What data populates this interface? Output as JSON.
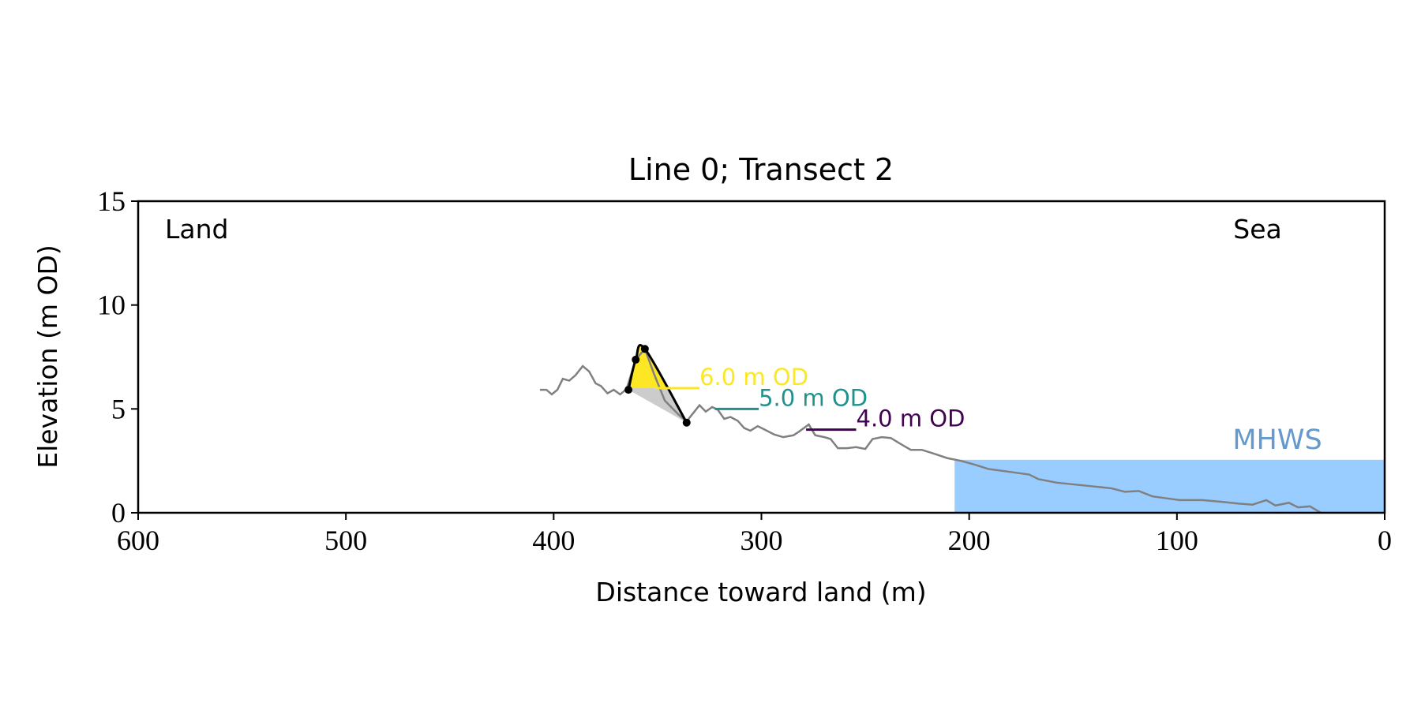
{
  "chart_data": {
    "type": "profile",
    "title": "Line 0; Transect 2",
    "xlabel": "Distance toward land (m)",
    "ylabel": "Elevation (m OD)",
    "annotations": {
      "left": "Land",
      "right": "Sea"
    },
    "xlim": [
      600,
      0
    ],
    "xticks": [
      600,
      500,
      400,
      300,
      200,
      100,
      0
    ],
    "ylim": [
      0,
      15
    ],
    "yticks": [
      0,
      5,
      10,
      15
    ],
    "profile": {
      "color": "#808080",
      "x": [
        406.6,
        403.5,
        400.9,
        398.2,
        395.6,
        392.5,
        389.5,
        386.0,
        382.9,
        379.8,
        377.2,
        374.1,
        371.1,
        368.0,
        364.9,
        360.5,
        356.1,
        351.8,
        346.5,
        340.0,
        336.0,
        333.3,
        329.8,
        326.8,
        323.7,
        321.0,
        317.9,
        314.9,
        311.4,
        308.3,
        305.3,
        301.8,
        298.2,
        293.9,
        289.5,
        284.6,
        282.0,
        277.2,
        274.1,
        269.7,
        266.7,
        263.2,
        258.8,
        254.4,
        250.0,
        246.5,
        242.1,
        237.7,
        233.3,
        228.1,
        222.8,
        217.1,
        210.5,
        203.9,
        197.4,
        190.8,
        184.2,
        177.6,
        171.1,
        166.7,
        157.9,
        149.1,
        140.4,
        131.6,
        125.0,
        118.4,
        111.8,
        105.3,
        98.7,
        87.7,
        78.9,
        70.2,
        63.6,
        57.0,
        52.6,
        46.1,
        41.7,
        36.0,
        30.7
      ],
      "y": [
        5.92,
        5.92,
        5.7,
        5.92,
        6.45,
        6.36,
        6.62,
        7.06,
        6.8,
        6.23,
        6.1,
        5.75,
        5.92,
        5.7,
        5.96,
        7.37,
        7.89,
        6.71,
        5.4,
        4.74,
        4.4,
        4.74,
        5.18,
        4.87,
        5.09,
        4.96,
        4.52,
        4.61,
        4.43,
        4.08,
        3.95,
        4.17,
        3.99,
        3.77,
        3.64,
        3.73,
        3.9,
        4.25,
        3.73,
        3.64,
        3.55,
        3.11,
        3.11,
        3.16,
        3.07,
        3.55,
        3.64,
        3.6,
        3.33,
        3.03,
        3.03,
        2.85,
        2.63,
        2.5,
        2.32,
        2.11,
        2.02,
        1.93,
        1.84,
        1.62,
        1.45,
        1.36,
        1.27,
        1.18,
        1.01,
        1.05,
        0.79,
        0.7,
        0.61,
        0.61,
        0.53,
        0.44,
        0.39,
        0.61,
        0.35,
        0.48,
        0.26,
        0.31,
        0.0
      ]
    },
    "dune": {
      "color": "#000000",
      "fill": "#fde725",
      "shadow": "#cccccc",
      "x": [
        364.0,
        360.5,
        356.1,
        336.0
      ],
      "y": [
        5.92,
        7.37,
        7.89,
        4.34
      ]
    },
    "contours": [
      {
        "label": "6.0 m OD",
        "value": 6.0,
        "x": [
          350.9,
          329.8
        ],
        "color": "#fde725"
      },
      {
        "label": "5.0 m OD",
        "value": 5.0,
        "x": [
          322.4,
          301.3
        ],
        "color": "#21918c"
      },
      {
        "label": "4.0 m OD",
        "value": 4.0,
        "x": [
          278.5,
          254.4
        ],
        "color": "#440154"
      }
    ],
    "mhws": {
      "label": "MHWS",
      "value": 2.55,
      "x": [
        207.0,
        0
      ],
      "color": "#99ccff",
      "label_color": "#6699cc"
    }
  }
}
